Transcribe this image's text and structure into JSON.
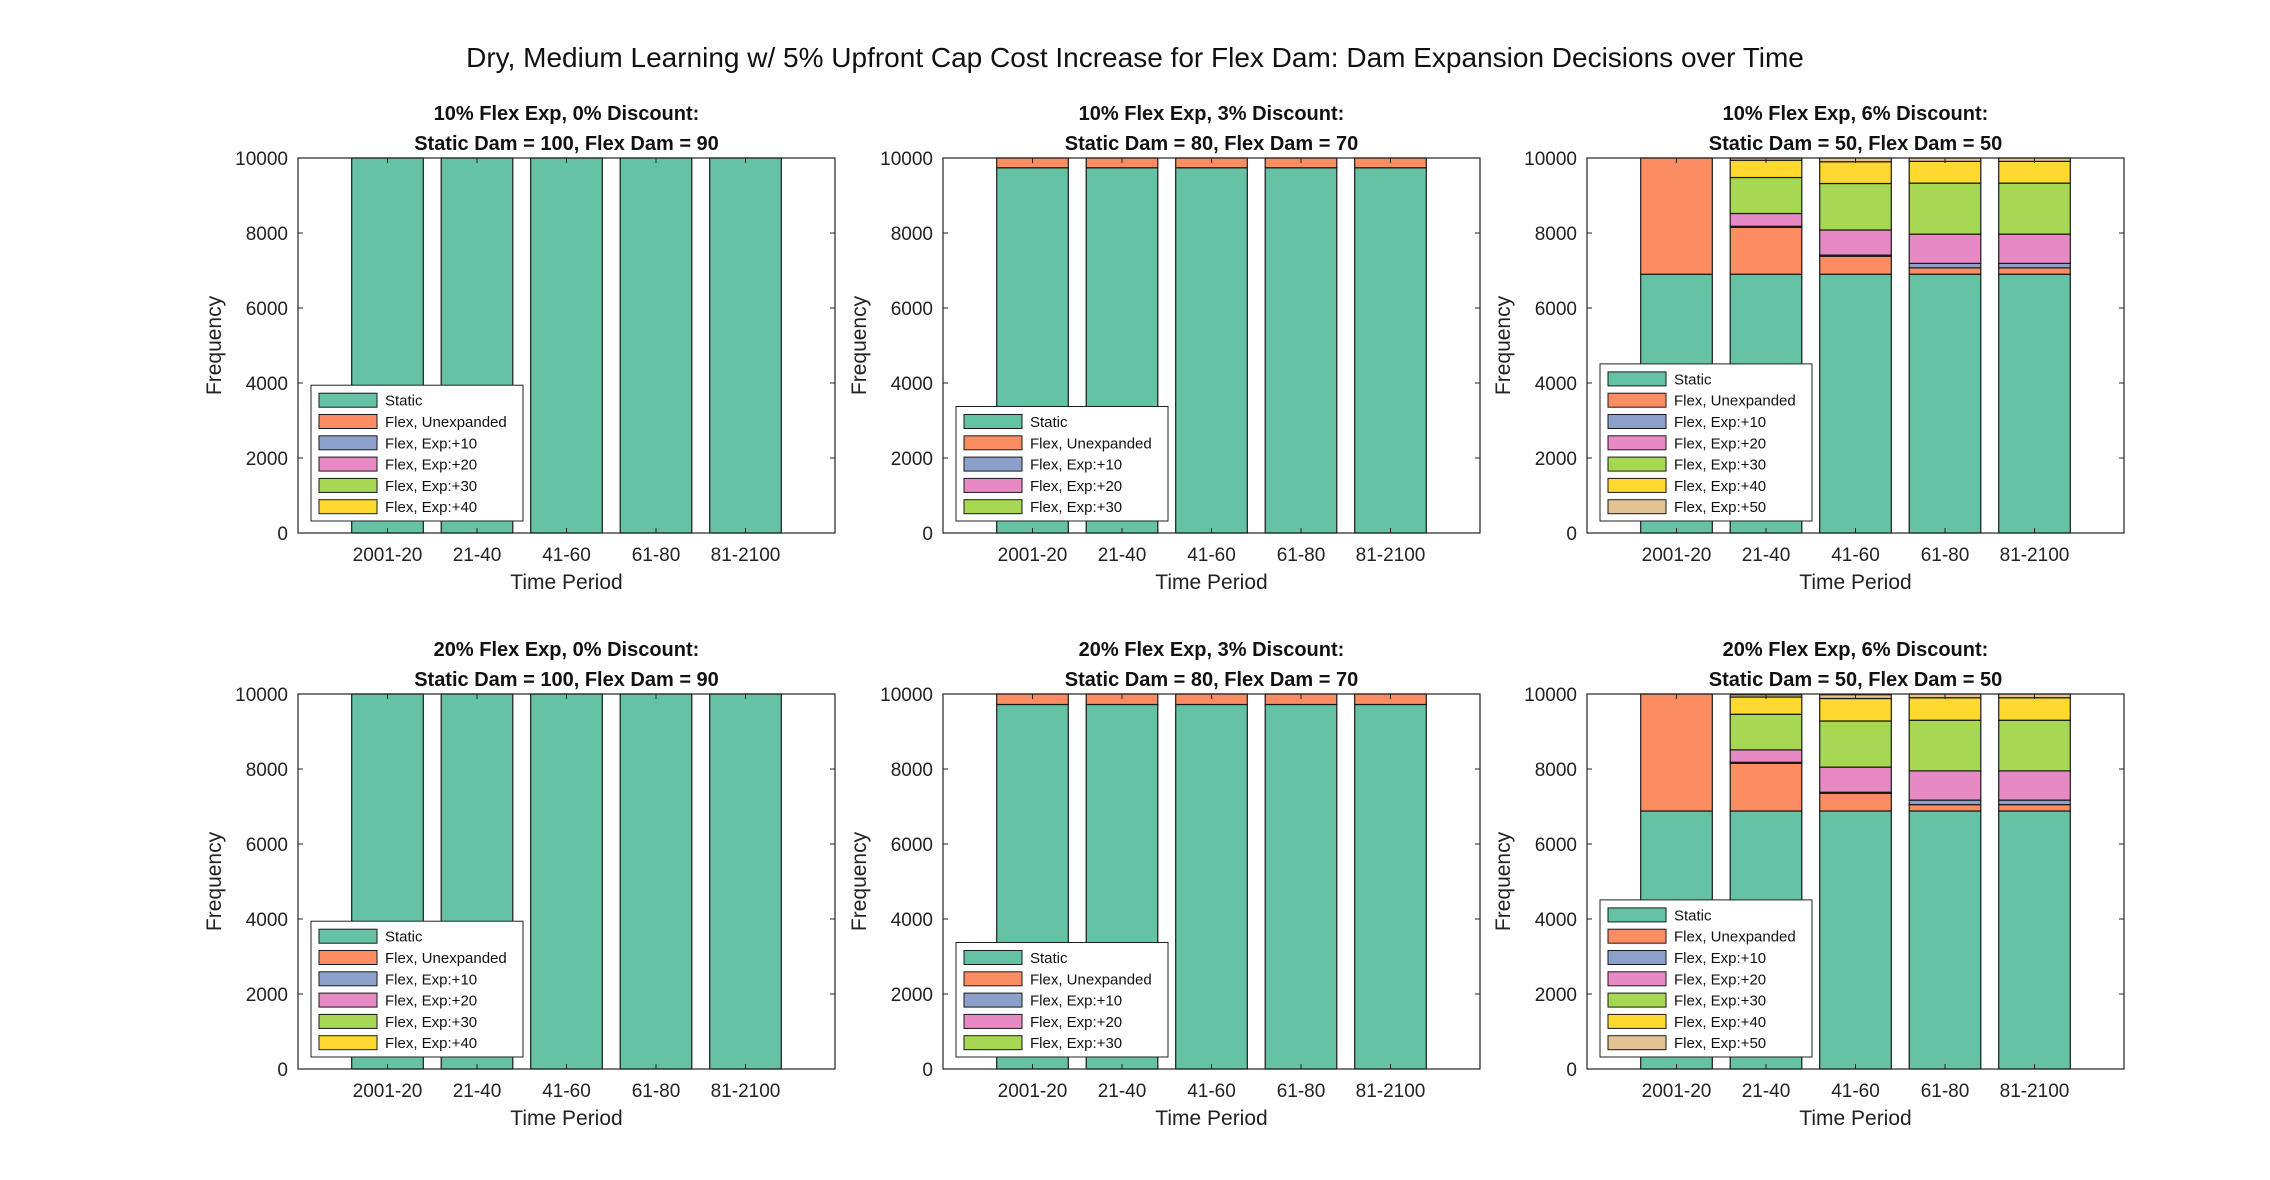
{
  "title": "Dry, Medium Learning w/ 5% Upfront Cap Cost Increase for Flex Dam: Dam Expansion Decisions over Time",
  "colors": {
    "Static": "#66c2a5",
    "Flex, Unexpanded": "#fc8d62",
    "Flex, Exp:+10": "#8da0cb",
    "Flex, Exp:+20": "#e78ac3",
    "Flex, Exp:+30": "#a6d854",
    "Flex, Exp:+40": "#ffd92f",
    "Flex, Exp:+50": "#e5c494"
  },
  "chart_data": [
    {
      "type": "bar",
      "stacked": true,
      "title_line1": "10% Flex Exp, 0% Discount:",
      "title_line2": "Static Dam = 100, Flex Dam = 90",
      "xlabel": "Time Period",
      "ylabel": "Frequency",
      "ylim": [
        0,
        10000
      ],
      "yticks": [
        0,
        2000,
        4000,
        6000,
        8000,
        10000
      ],
      "categories": [
        "2001-20",
        "21-40",
        "41-60",
        "61-80",
        "81-2100"
      ],
      "legend_position": "bottom-left",
      "legend": [
        "Static",
        "Flex, Unexpanded",
        "Flex, Exp:+10",
        "Flex, Exp:+20",
        "Flex, Exp:+30",
        "Flex, Exp:+40"
      ],
      "series": [
        {
          "name": "Static",
          "values": [
            10000,
            10000,
            10000,
            10000,
            10000
          ]
        }
      ]
    },
    {
      "type": "bar",
      "stacked": true,
      "title_line1": "10% Flex Exp, 3% Discount:",
      "title_line2": "Static Dam = 80, Flex Dam = 70",
      "xlabel": "Time Period",
      "ylabel": "Frequency",
      "ylim": [
        0,
        10000
      ],
      "yticks": [
        0,
        2000,
        4000,
        6000,
        8000,
        10000
      ],
      "categories": [
        "2001-20",
        "21-40",
        "41-60",
        "61-80",
        "81-2100"
      ],
      "legend_position": "bottom-left",
      "legend": [
        "Static",
        "Flex, Unexpanded",
        "Flex, Exp:+10",
        "Flex, Exp:+20",
        "Flex, Exp:+30"
      ],
      "series": [
        {
          "name": "Static",
          "values": [
            9740,
            9740,
            9740,
            9740,
            9740
          ]
        },
        {
          "name": "Flex, Unexpanded",
          "values": [
            260,
            260,
            260,
            260,
            260
          ]
        }
      ]
    },
    {
      "type": "bar",
      "stacked": true,
      "title_line1": "10% Flex Exp, 6% Discount:",
      "title_line2": "Static Dam = 50, Flex Dam = 50",
      "xlabel": "Time Period",
      "ylabel": "Frequency",
      "ylim": [
        0,
        10000
      ],
      "yticks": [
        0,
        2000,
        4000,
        6000,
        8000,
        10000
      ],
      "categories": [
        "2001-20",
        "21-40",
        "41-60",
        "61-80",
        "81-2100"
      ],
      "legend_position": "bottom-left",
      "legend": [
        "Static",
        "Flex, Unexpanded",
        "Flex, Exp:+10",
        "Flex, Exp:+20",
        "Flex, Exp:+30",
        "Flex, Exp:+40",
        "Flex, Exp:+50"
      ],
      "series": [
        {
          "name": "Static",
          "values": [
            6900,
            6900,
            6900,
            6900,
            6900
          ]
        },
        {
          "name": "Flex, Unexpanded",
          "values": [
            3100,
            1250,
            480,
            170,
            170
          ]
        },
        {
          "name": "Flex, Exp:+10",
          "values": [
            0,
            30,
            30,
            120,
            120
          ]
        },
        {
          "name": "Flex, Exp:+20",
          "values": [
            0,
            340,
            670,
            780,
            780
          ]
        },
        {
          "name": "Flex, Exp:+30",
          "values": [
            0,
            960,
            1240,
            1360,
            1360
          ]
        },
        {
          "name": "Flex, Exp:+40",
          "values": [
            0,
            460,
            580,
            580,
            580
          ]
        },
        {
          "name": "Flex, Exp:+50",
          "values": [
            0,
            60,
            100,
            90,
            90
          ]
        }
      ]
    },
    {
      "type": "bar",
      "stacked": true,
      "title_line1": "20% Flex Exp, 0% Discount:",
      "title_line2": "Static Dam = 100, Flex Dam = 90",
      "xlabel": "Time Period",
      "ylabel": "Frequency",
      "ylim": [
        0,
        10000
      ],
      "yticks": [
        0,
        2000,
        4000,
        6000,
        8000,
        10000
      ],
      "categories": [
        "2001-20",
        "21-40",
        "41-60",
        "61-80",
        "81-2100"
      ],
      "legend_position": "bottom-left",
      "legend": [
        "Static",
        "Flex, Unexpanded",
        "Flex, Exp:+10",
        "Flex, Exp:+20",
        "Flex, Exp:+30",
        "Flex, Exp:+40"
      ],
      "series": [
        {
          "name": "Static",
          "values": [
            10000,
            10000,
            10000,
            10000,
            10000
          ]
        }
      ]
    },
    {
      "type": "bar",
      "stacked": true,
      "title_line1": "20% Flex Exp, 3% Discount:",
      "title_line2": "Static Dam = 80, Flex Dam = 70",
      "xlabel": "Time Period",
      "ylabel": "Frequency",
      "ylim": [
        0,
        10000
      ],
      "yticks": [
        0,
        2000,
        4000,
        6000,
        8000,
        10000
      ],
      "categories": [
        "2001-20",
        "21-40",
        "41-60",
        "61-80",
        "81-2100"
      ],
      "legend_position": "bottom-left",
      "legend": [
        "Static",
        "Flex, Unexpanded",
        "Flex, Exp:+10",
        "Flex, Exp:+20",
        "Flex, Exp:+30"
      ],
      "series": [
        {
          "name": "Static",
          "values": [
            9720,
            9720,
            9720,
            9720,
            9720
          ]
        },
        {
          "name": "Flex, Unexpanded",
          "values": [
            280,
            280,
            280,
            280,
            280
          ]
        }
      ]
    },
    {
      "type": "bar",
      "stacked": true,
      "title_line1": "20% Flex Exp, 6% Discount:",
      "title_line2": "Static Dam = 50, Flex Dam = 50",
      "xlabel": "Time Period",
      "ylabel": "Frequency",
      "ylim": [
        0,
        10000
      ],
      "yticks": [
        0,
        2000,
        4000,
        6000,
        8000,
        10000
      ],
      "categories": [
        "2001-20",
        "21-40",
        "41-60",
        "61-80",
        "81-2100"
      ],
      "legend_position": "bottom-left",
      "legend": [
        "Static",
        "Flex, Unexpanded",
        "Flex, Exp:+10",
        "Flex, Exp:+20",
        "Flex, Exp:+30",
        "Flex, Exp:+40",
        "Flex, Exp:+50"
      ],
      "series": [
        {
          "name": "Static",
          "values": [
            6880,
            6880,
            6880,
            6880,
            6880
          ]
        },
        {
          "name": "Flex, Unexpanded",
          "values": [
            3120,
            1270,
            470,
            170,
            170
          ]
        },
        {
          "name": "Flex, Exp:+10",
          "values": [
            0,
            30,
            30,
            120,
            120
          ]
        },
        {
          "name": "Flex, Exp:+20",
          "values": [
            0,
            330,
            670,
            780,
            780
          ]
        },
        {
          "name": "Flex, Exp:+30",
          "values": [
            0,
            950,
            1230,
            1350,
            1350
          ]
        },
        {
          "name": "Flex, Exp:+40",
          "values": [
            0,
            460,
            600,
            600,
            600
          ]
        },
        {
          "name": "Flex, Exp:+50",
          "values": [
            0,
            60,
            100,
            100,
            100
          ]
        }
      ]
    }
  ]
}
